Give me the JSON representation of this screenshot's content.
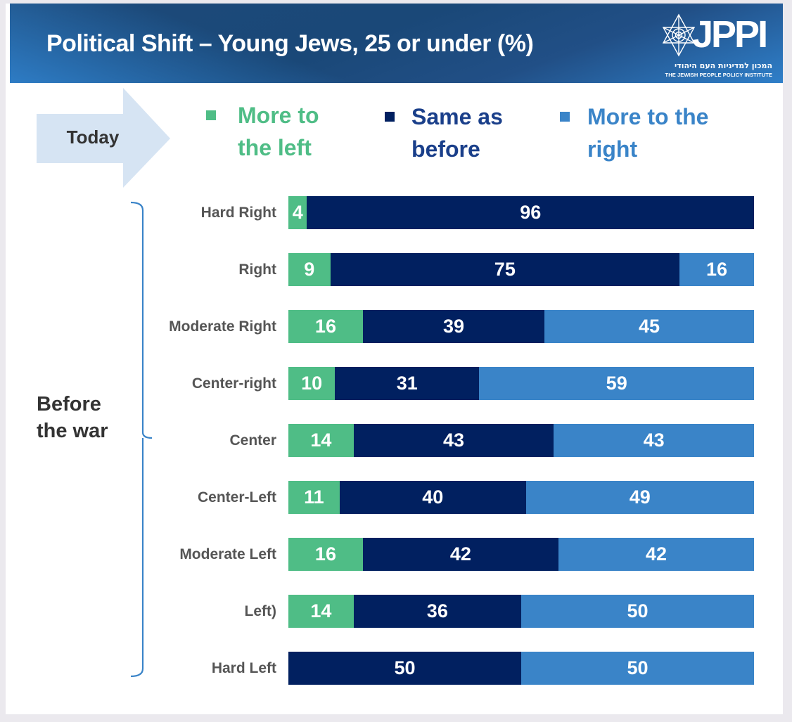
{
  "header": {
    "title": "Political Shift – Young Jews, 25 or under (%)",
    "logo_text": "JPPI",
    "logo_hebrew": "המכון למדיניות העם היהודי",
    "logo_subtitle": "THE JEWISH PEOPLE POLICY INSTITUTE",
    "logo_icon": "star-of-david-icon"
  },
  "annotations": {
    "today_label": "Today",
    "before_label_line1": "Before",
    "before_label_line2": "the war"
  },
  "colors": {
    "more_left": "#4fbd86",
    "same": "#012060",
    "more_right": "#3a84c8",
    "header": "#1d4a7a",
    "arrow": "#d6e4f3",
    "bracket": "#3a84c8",
    "label": "#555555"
  },
  "chart_data": {
    "type": "bar",
    "orientation": "horizontal",
    "stacked": true,
    "normalized_to": 100,
    "title": "Political Shift – Young Jews, 25 or under (%)",
    "xlabel": "Today",
    "ylabel": "Before the war",
    "xlim": [
      0,
      100
    ],
    "grid": false,
    "legend_position": "top",
    "categories": [
      "Hard Right",
      "Right",
      "Moderate Right",
      "Center-right",
      "Center",
      "Center-Left",
      "Moderate Left",
      "Left)",
      "Hard Left"
    ],
    "series": [
      {
        "name": "More to the left",
        "legend_line1": "More to",
        "legend_line2": "the left",
        "color": "#4fbd86",
        "values": [
          4,
          9,
          16,
          10,
          14,
          11,
          16,
          14,
          0
        ]
      },
      {
        "name": "Same as before",
        "legend_line1": "Same as",
        "legend_line2": "before",
        "color": "#012060",
        "values": [
          96,
          75,
          39,
          31,
          43,
          40,
          42,
          36,
          50
        ]
      },
      {
        "name": "More to the right",
        "legend_line1": "More to the",
        "legend_line2": "right",
        "color": "#3a84c8",
        "values": [
          0,
          16,
          45,
          59,
          43,
          49,
          42,
          50,
          50
        ]
      }
    ]
  }
}
